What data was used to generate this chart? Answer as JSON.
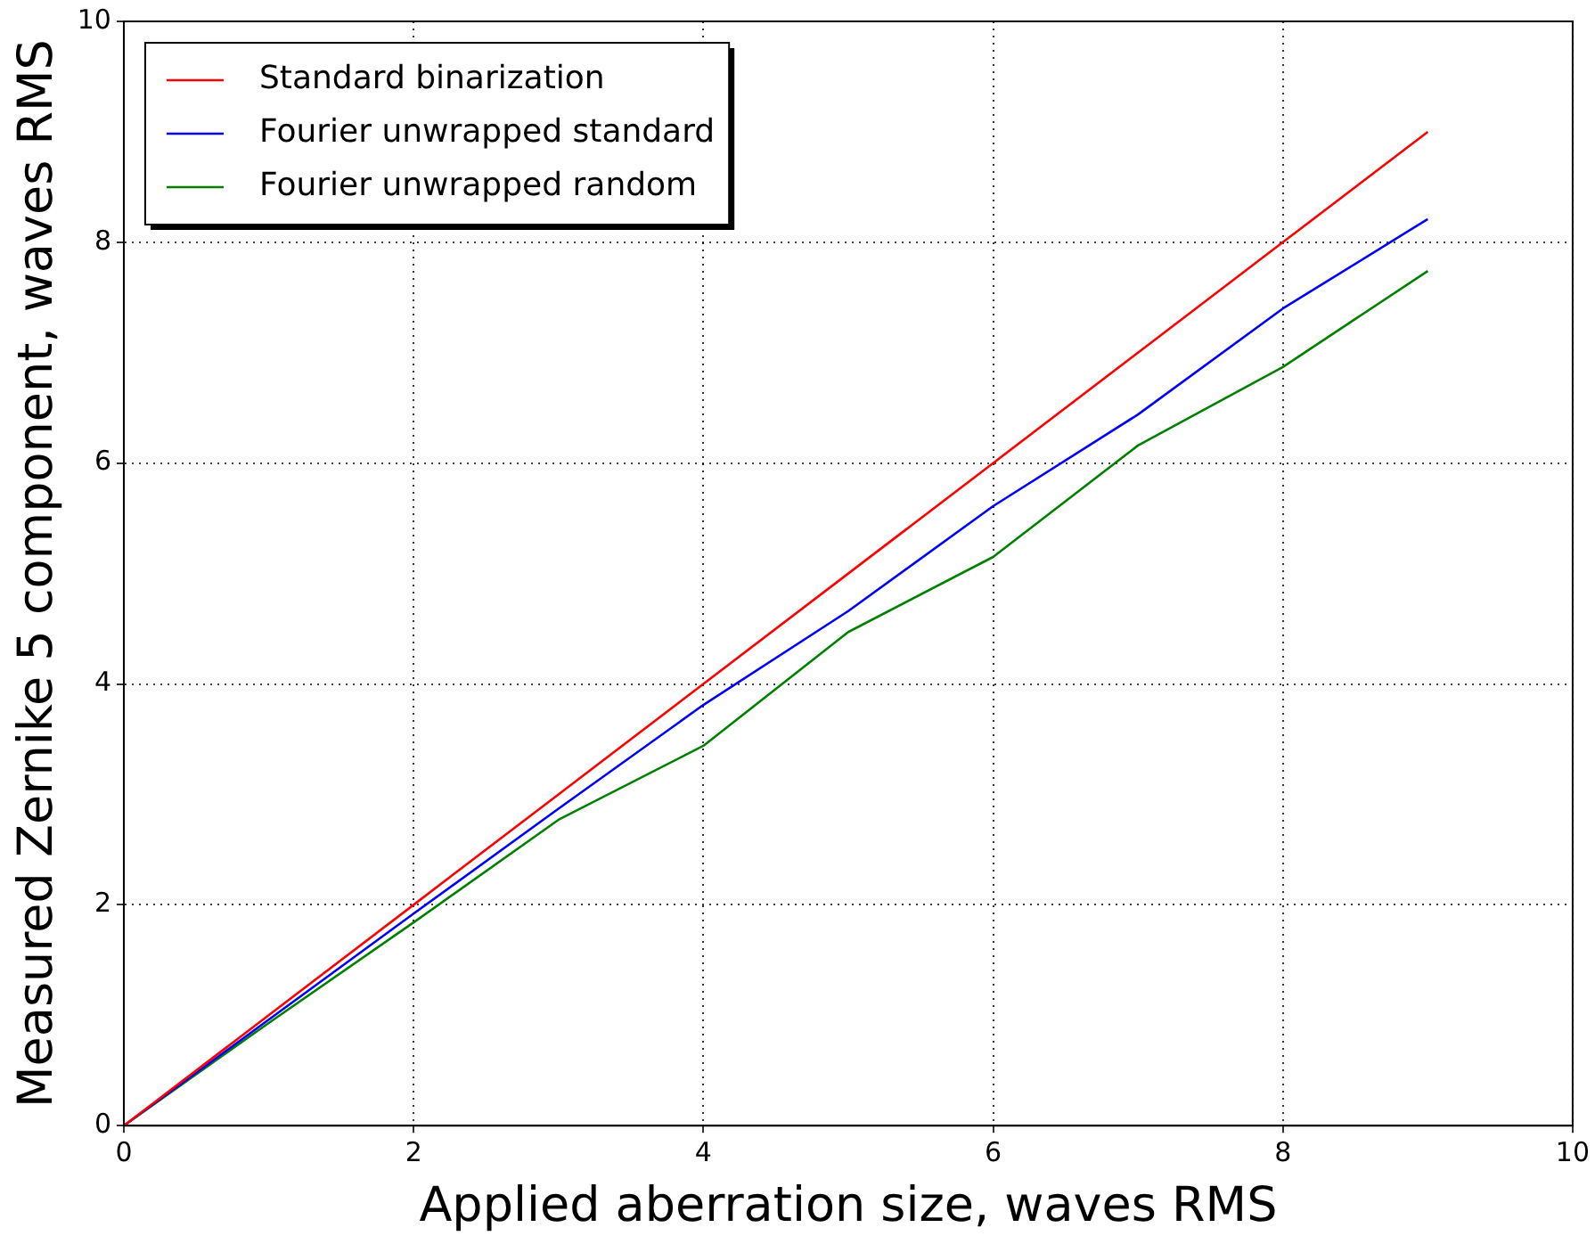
{
  "chart_data": {
    "type": "line",
    "xlabel": "Applied aberration size, waves RMS",
    "ylabel": "Measured Zernike 5 component, waves RMS",
    "x": [
      0,
      1,
      2,
      3,
      4,
      5,
      6,
      7,
      8,
      9
    ],
    "series": [
      {
        "name": "Standard binarization",
        "color": "#ff0000",
        "values": [
          0,
          1,
          2,
          3,
          4,
          5,
          6,
          7,
          8,
          9
        ]
      },
      {
        "name": "Fourier unwrapped standard",
        "color": "#0000ff",
        "values": [
          0,
          0.96,
          1.92,
          2.87,
          3.81,
          4.66,
          5.61,
          6.44,
          7.4,
          8.21
        ]
      },
      {
        "name": "Fourier unwrapped random",
        "color": "#008000",
        "values": [
          0,
          0.93,
          1.84,
          2.77,
          3.44,
          4.47,
          5.15,
          6.16,
          6.87,
          7.74
        ]
      }
    ],
    "xlim": [
      0,
      10
    ],
    "xticks": [
      0,
      2,
      4,
      6,
      8,
      10
    ],
    "ylim": [
      0,
      10
    ],
    "yticks": [
      0,
      2,
      4,
      6,
      8,
      10
    ],
    "grid": true,
    "legend": "top left",
    "marker": "none"
  }
}
